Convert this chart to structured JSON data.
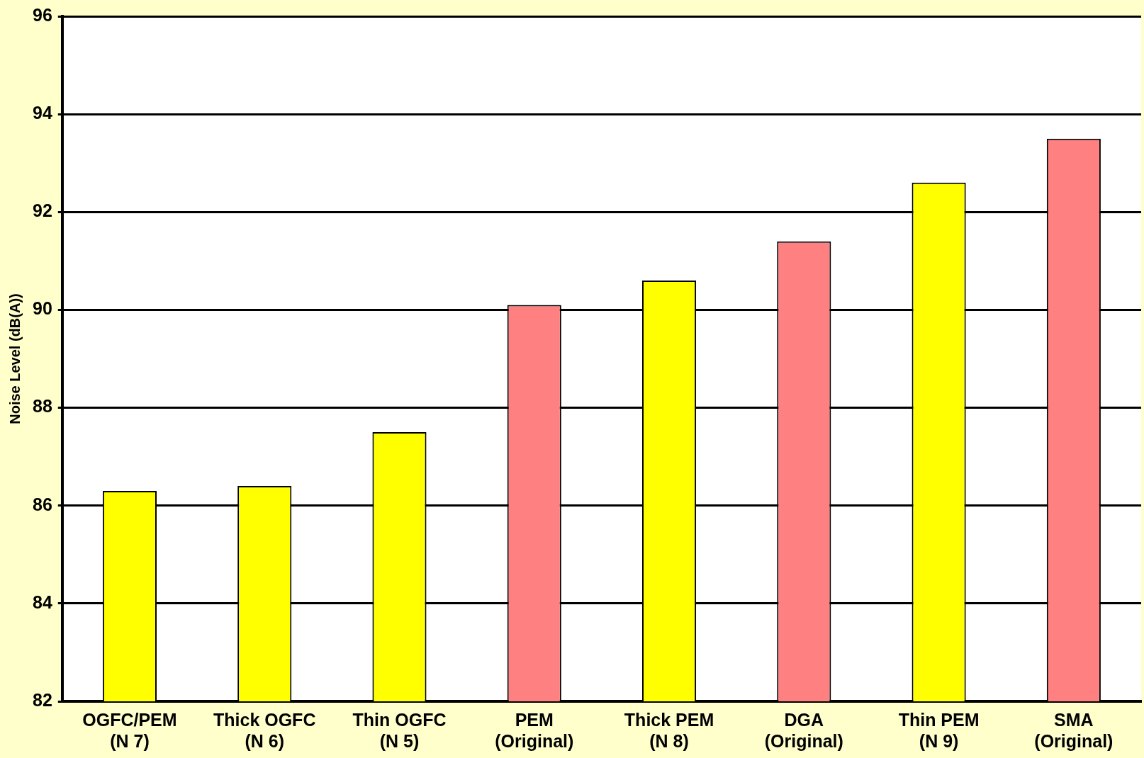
{
  "chart_data": {
    "type": "bar",
    "ylabel": "Noise Level (dB(A))",
    "categories": [
      "OGFC/PEM (N 7)",
      "Thick OGFC (N 6)",
      "Thin OGFC (N 5)",
      "PEM (Original)",
      "Thick PEM (N 8)",
      "DGA (Original)",
      "Thin PEM (N 9)",
      "SMA (Original)"
    ],
    "values": [
      86.3,
      86.4,
      87.5,
      90.1,
      90.6,
      91.4,
      92.6,
      93.5
    ],
    "colors": [
      "#ffff00",
      "#ffff00",
      "#ffff00",
      "#ff8080",
      "#ffff00",
      "#ff8080",
      "#ffff00",
      "#ff8080"
    ],
    "ylim": [
      82,
      96
    ],
    "yticks": [
      82,
      84,
      86,
      88,
      90,
      92,
      94,
      96
    ],
    "grid": "y",
    "legend": false
  }
}
